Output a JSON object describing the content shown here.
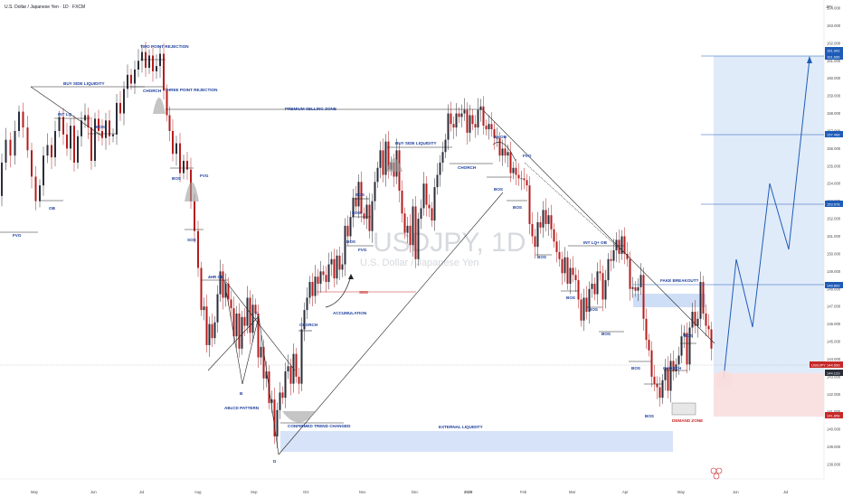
{
  "header": {
    "pair_title": "U.S. Dollar / Japanese Yen · 1D · FXCM",
    "currency": "JPY"
  },
  "watermark": {
    "symbol": "USDJPY, 1D",
    "name": "U.S. Dollar / Japanese Yen"
  },
  "chart_data": {
    "type": "candlestick",
    "price_range": [
      138.0,
      164.0
    ],
    "y_ticks": [
      164,
      163,
      162,
      161,
      160,
      159,
      158,
      157,
      156,
      155,
      154,
      153,
      152,
      151,
      150,
      149,
      148,
      147,
      146,
      145,
      144,
      143,
      142,
      141,
      140,
      139,
      138
    ],
    "x_ticks": [
      "May",
      "Jun",
      "Jul",
      "Aug",
      "Sep",
      "Oct",
      "Nov",
      "Dec",
      "2025",
      "Feb",
      "Mar",
      "Apr",
      "May",
      "Jun",
      "Jul"
    ],
    "bold_tick": "2025",
    "price_path": [
      [
        0,
        153.3
      ],
      [
        4,
        155.2
      ],
      [
        9,
        156.5
      ],
      [
        14,
        155.6
      ],
      [
        19,
        157.0
      ],
      [
        23,
        158.1
      ],
      [
        28,
        157.2
      ],
      [
        33,
        155.9
      ],
      [
        37,
        154.4
      ],
      [
        42,
        153.0
      ],
      [
        46,
        153.9
      ],
      [
        50,
        155.6
      ],
      [
        55,
        156.2
      ],
      [
        59,
        155.5
      ],
      [
        63,
        157.0
      ],
      [
        68,
        157.8
      ],
      [
        72,
        156.8
      ],
      [
        76,
        156.0
      ],
      [
        80,
        157.3
      ],
      [
        84,
        155.2
      ],
      [
        88,
        156.7
      ],
      [
        92,
        157.6
      ],
      [
        96,
        157.9
      ],
      [
        99,
        157.2
      ],
      [
        103,
        155.3
      ],
      [
        107,
        157.7
      ],
      [
        111,
        157.0
      ],
      [
        115,
        156.6
      ],
      [
        119,
        157.6
      ],
      [
        123,
        156.7
      ],
      [
        127,
        156.8
      ],
      [
        131,
        158.6
      ],
      [
        135,
        158.0
      ],
      [
        139,
        159.4
      ],
      [
        143,
        160.2
      ],
      [
        147,
        159.7
      ],
      [
        151,
        160.5
      ],
      [
        155,
        161.0
      ],
      [
        159,
        161.5
      ],
      [
        163,
        160.6
      ],
      [
        167,
        161.3
      ],
      [
        171,
        160.4
      ],
      [
        175,
        160.7
      ],
      [
        179,
        161.4
      ],
      [
        183,
        159.3
      ],
      [
        186,
        157.9
      ],
      [
        189,
        157.0
      ],
      [
        193,
        155.7
      ],
      [
        197,
        156.3
      ],
      [
        201,
        154.6
      ],
      [
        205,
        155.3
      ],
      [
        209,
        154.8
      ],
      [
        213,
        153.0
      ],
      [
        217,
        151.3
      ],
      [
        221,
        149.2
      ],
      [
        224,
        146.8
      ],
      [
        227,
        147.0
      ],
      [
        230,
        144.8
      ],
      [
        233,
        146.0
      ],
      [
        236,
        145.2
      ],
      [
        239,
        146.1
      ],
      [
        242,
        147.7
      ],
      [
        245,
        149.0
      ],
      [
        248,
        147.5
      ],
      [
        251,
        148.3
      ],
      [
        254,
        147.4
      ],
      [
        257,
        146.9
      ],
      [
        260,
        145.3
      ],
      [
        263,
        146.6
      ],
      [
        266,
        144.6
      ],
      [
        269,
        146.4
      ],
      [
        272,
        145.9
      ],
      [
        275,
        147.5
      ],
      [
        278,
        145.5
      ],
      [
        281,
        147.1
      ],
      [
        284,
        146.6
      ],
      [
        287,
        144.1
      ],
      [
        290,
        144.7
      ],
      [
        293,
        142.9
      ],
      [
        296,
        143.3
      ],
      [
        299,
        141.5
      ],
      [
        302,
        141.7
      ],
      [
        305,
        139.6
      ],
      [
        308,
        141.1
      ],
      [
        311,
        142.1
      ],
      [
        314,
        141.8
      ],
      [
        317,
        143.3
      ],
      [
        320,
        143.6
      ],
      [
        323,
        142.6
      ],
      [
        326,
        144.3
      ],
      [
        329,
        143.0
      ],
      [
        332,
        142.6
      ],
      [
        335,
        145.7
      ],
      [
        338,
        146.8
      ],
      [
        341,
        147.5
      ],
      [
        344,
        148.4
      ],
      [
        347,
        147.6
      ],
      [
        350,
        148.7
      ],
      [
        353,
        148.3
      ],
      [
        356,
        149.0
      ],
      [
        359,
        148.8
      ],
      [
        362,
        148.4
      ],
      [
        365,
        149.4
      ],
      [
        368,
        149.7
      ],
      [
        371,
        148.6
      ],
      [
        374,
        149.9
      ],
      [
        377,
        149.1
      ],
      [
        380,
        149.4
      ],
      [
        383,
        151.6
      ],
      [
        386,
        151.0
      ],
      [
        389,
        152.1
      ],
      [
        392,
        153.2
      ],
      [
        395,
        152.7
      ],
      [
        398,
        154.1
      ],
      [
        401,
        152.3
      ],
      [
        404,
        152.0
      ],
      [
        407,
        152.8
      ],
      [
        410,
        151.3
      ],
      [
        413,
        153.0
      ],
      [
        416,
        154.1
      ],
      [
        419,
        154.9
      ],
      [
        422,
        155.9
      ],
      [
        425,
        154.5
      ],
      [
        428,
        156.4
      ],
      [
        431,
        154.8
      ],
      [
        434,
        155.2
      ],
      [
        437,
        154.4
      ],
      [
        440,
        155.9
      ],
      [
        443,
        153.6
      ],
      [
        446,
        152.3
      ],
      [
        449,
        151.2
      ],
      [
        452,
        151.6
      ],
      [
        455,
        150.5
      ],
      [
        458,
        152.7
      ],
      [
        461,
        149.7
      ],
      [
        464,
        152.0
      ],
      [
        467,
        152.6
      ],
      [
        470,
        154.0
      ],
      [
        473,
        152.8
      ],
      [
        476,
        152.6
      ],
      [
        479,
        151.9
      ],
      [
        482,
        153.8
      ],
      [
        485,
        154.5
      ],
      [
        488,
        155.2
      ],
      [
        491,
        155.8
      ],
      [
        494,
        156.5
      ],
      [
        497,
        158.0
      ],
      [
        500,
        157.4
      ],
      [
        503,
        157.2
      ],
      [
        506,
        158.0
      ],
      [
        509,
        157.8
      ],
      [
        512,
        158.0
      ],
      [
        515,
        158.2
      ],
      [
        518,
        156.9
      ],
      [
        521,
        157.9
      ],
      [
        524,
        157.4
      ],
      [
        527,
        157.2
      ],
      [
        530,
        158.2
      ],
      [
        533,
        158.4
      ],
      [
        536,
        157.3
      ],
      [
        539,
        157.1
      ],
      [
        542,
        157.4
      ],
      [
        545,
        157.1
      ],
      [
        548,
        156.6
      ],
      [
        551,
        156.6
      ],
      [
        554,
        155.6
      ],
      [
        557,
        156.0
      ],
      [
        560,
        155.6
      ],
      [
        563,
        155.8
      ],
      [
        566,
        154.6
      ],
      [
        569,
        154.9
      ],
      [
        572,
        154.5
      ],
      [
        575,
        154.3
      ],
      [
        578,
        154.3
      ],
      [
        581,
        154.2
      ],
      [
        584,
        153.9
      ],
      [
        587,
        151.7
      ],
      [
        590,
        151.0
      ],
      [
        593,
        150.4
      ],
      [
        596,
        151.8
      ],
      [
        599,
        151.5
      ],
      [
        602,
        152.5
      ],
      [
        605,
        151.7
      ],
      [
        608,
        152.2
      ],
      [
        611,
        151.4
      ],
      [
        614,
        150.7
      ],
      [
        617,
        150.1
      ],
      [
        620,
        149.7
      ],
      [
        623,
        148.9
      ],
      [
        626,
        149.8
      ],
      [
        629,
        148.3
      ],
      [
        632,
        149.2
      ],
      [
        635,
        148.8
      ],
      [
        638,
        148.5
      ],
      [
        641,
        147.4
      ],
      [
        644,
        146.2
      ],
      [
        647,
        147.5
      ],
      [
        650,
        146.7
      ],
      [
        653,
        148.0
      ],
      [
        656,
        148.3
      ],
      [
        659,
        147.7
      ],
      [
        662,
        149.0
      ],
      [
        665,
        148.9
      ],
      [
        668,
        147.4
      ],
      [
        671,
        148.5
      ],
      [
        674,
        149.7
      ],
      [
        677,
        149.6
      ],
      [
        680,
        150.2
      ],
      [
        683,
        150.8
      ],
      [
        686,
        150.0
      ],
      [
        689,
        151.0
      ],
      [
        692,
        150.0
      ],
      [
        695,
        149.7
      ],
      [
        698,
        148.0
      ],
      [
        701,
        148.1
      ],
      [
        704,
        147.9
      ],
      [
        707,
        148.1
      ],
      [
        710,
        148.8
      ],
      [
        713,
        146.3
      ],
      [
        716,
        145.1
      ],
      [
        719,
        144.5
      ],
      [
        722,
        143.0
      ],
      [
        725,
        142.6
      ],
      [
        728,
        142.4
      ],
      [
        731,
        141.8
      ],
      [
        734,
        142.8
      ],
      [
        737,
        143.5
      ],
      [
        740,
        142.2
      ],
      [
        743,
        143.9
      ],
      [
        746,
        143.3
      ],
      [
        749,
        143.7
      ],
      [
        752,
        144.2
      ],
      [
        755,
        145.3
      ],
      [
        758,
        145.5
      ],
      [
        761,
        143.7
      ],
      [
        764,
        145.8
      ],
      [
        767,
        146.7
      ],
      [
        770,
        145.9
      ],
      [
        773,
        146.3
      ],
      [
        776,
        148.4
      ],
      [
        779,
        146.6
      ],
      [
        782,
        145.9
      ],
      [
        785,
        145.7
      ],
      [
        788,
        144.6
      ]
    ],
    "annotations": {
      "fvg_1": "FVG",
      "ob_1": "OB",
      "int_lq": "INT LQ",
      "bos_1": "BOS",
      "buy_side_liquidity_1": "BUY SIDE LIQUIDITY",
      "two_point_rejection": "TWO POINT REJECTION",
      "chorch_1": "CHORCH",
      "three_point_rejection": "THREE POINT REJECTION",
      "premium_selling_zone": "PREMIUM SELLING ZONE",
      "bos_2": "BOS",
      "fvg_2": "FVG",
      "sos": "SOS",
      "four_hr_ob": "4HR OB",
      "label_c": "C",
      "label_b": "B",
      "label_d": "D",
      "abcd_pattern": "ABcCD PATTERN",
      "chorch_2": "CHORCH",
      "confirmed_trend_changed": "CONFIRMED TREND CHANGED",
      "accumulation": "ACCUMULATION",
      "fvg_3": "FVG",
      "bos_3": "BOS",
      "bos_4": "BOS",
      "bos_5": "BOS",
      "buy_side_liquidity_2": "BUY SIDE LIQUIDITY",
      "four_h_ob": "4H OB",
      "chorch_3": "CHORCH",
      "bos_6": "BOS",
      "bos_7": "BOS",
      "fvg_4": "FVG",
      "external_liquidity": "EXTERNAL LIQUIDITY",
      "int_lq_ob": "INT LQ+ OB",
      "bos_8": "BOS",
      "bos_9": "BOS",
      "bos_10": "BOS",
      "bos_11": "BOS",
      "bos_12": "BOS",
      "bos_13": "BOS",
      "fake_breakout": "FAKE BREAKOUT?",
      "chorch_4": "CHORCH",
      "bos_14": "BOS",
      "demand_zone": "DEMAND ZONE",
      "small_box_label": "SMS"
    },
    "target_levels": [
      "161.902",
      "161.696",
      "157.468",
      "153.578",
      "148.800"
    ],
    "stop_level": "141.858",
    "current_price": {
      "symbol": "USDJPY",
      "value": "144.599"
    },
    "current_level_small": "144.123"
  },
  "colors": {
    "up_candle": "#2a2e39",
    "down_candle": "#b71c1c",
    "annotation": "#1e3f9e",
    "target_zone": "#dbe8f8",
    "stop_zone": "#f8dede",
    "premium_zone": "#c9daf5"
  }
}
